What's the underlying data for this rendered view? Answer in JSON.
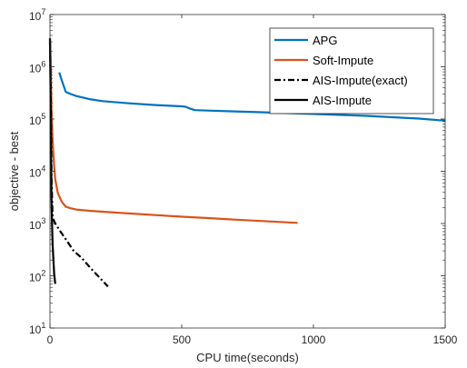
{
  "chart_data": {
    "type": "line",
    "title": "",
    "xlabel": "CPU time(seconds)",
    "ylabel": "objective - best",
    "xlim": [
      0,
      1500
    ],
    "ylim": [
      10,
      10000000
    ],
    "yscale": "log",
    "grid": false,
    "legend_position": "top-right",
    "x_ticks": [
      {
        "value": 0,
        "label": "0"
      },
      {
        "value": 500,
        "label": "500"
      },
      {
        "value": 1000,
        "label": "1000"
      },
      {
        "value": 1500,
        "label": "1500"
      }
    ],
    "y_ticks": [
      {
        "value": 10,
        "base": "10",
        "exp": "1"
      },
      {
        "value": 100,
        "base": "10",
        "exp": "2"
      },
      {
        "value": 1000,
        "base": "10",
        "exp": "3"
      },
      {
        "value": 10000,
        "base": "10",
        "exp": "4"
      },
      {
        "value": 100000,
        "base": "10",
        "exp": "5"
      },
      {
        "value": 1000000,
        "base": "10",
        "exp": "6"
      },
      {
        "value": 10000000,
        "base": "10",
        "exp": "7"
      }
    ],
    "series": [
      {
        "name": "APG",
        "color": "#0072BD",
        "dash": "solid",
        "x": [
          35,
          45,
          60,
          80,
          100,
          150,
          200,
          300,
          400,
          500,
          515,
          530,
          550,
          600,
          700,
          800,
          1000,
          1200,
          1400,
          1500
        ],
        "y": [
          780000,
          550000,
          330000,
          300000,
          275000,
          240000,
          220000,
          200000,
          185000,
          175000,
          172000,
          160000,
          148000,
          145000,
          140000,
          135000,
          125000,
          115000,
          102000,
          93000
        ]
      },
      {
        "name": "Soft-Impute",
        "color": "#D95319",
        "dash": "solid",
        "x": [
          0,
          3,
          6,
          10,
          15,
          20,
          30,
          45,
          60,
          80,
          100,
          150,
          200,
          300,
          400,
          500,
          600,
          700,
          800,
          940
        ],
        "y": [
          3500000,
          900000,
          150000,
          40000,
          14000,
          7000,
          3800,
          2600,
          2100,
          1950,
          1850,
          1750,
          1680,
          1560,
          1450,
          1350,
          1270,
          1190,
          1120,
          1030
        ]
      },
      {
        "name": "AIS-Impute(exact)",
        "color": "#000000",
        "dash": "dashdot",
        "x": [
          0,
          3,
          6,
          10,
          20,
          40,
          60,
          90,
          120,
          160,
          200,
          220
        ],
        "y": [
          3000000,
          300000,
          8000,
          1300,
          1000,
          700,
          500,
          300,
          220,
          130,
          80,
          62
        ]
      },
      {
        "name": "AIS-Impute",
        "color": "#000000",
        "dash": "solid",
        "x": [
          0,
          2,
          4,
          6,
          8,
          10,
          13,
          16,
          20
        ],
        "y": [
          3500000,
          300000,
          20000,
          3000,
          1000,
          400,
          200,
          110,
          70
        ]
      }
    ]
  }
}
